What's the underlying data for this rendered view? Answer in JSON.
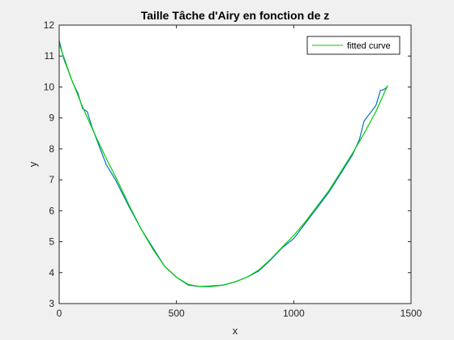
{
  "chart_data": {
    "type": "line",
    "title": "Taille Tâche d'Airy en fonction de z",
    "xlabel": "x",
    "ylabel": "y",
    "xlim": [
      0,
      1500
    ],
    "ylim": [
      3,
      12
    ],
    "xticks": [
      0,
      500,
      1000,
      1500
    ],
    "yticks": [
      3,
      4,
      5,
      6,
      7,
      8,
      9,
      10,
      11,
      12
    ],
    "grid": false,
    "legend_position": "top-right",
    "series": [
      {
        "role": "data",
        "color": "#0072BD",
        "x": [
          0,
          20,
          40,
          60,
          80,
          100,
          120,
          140,
          160,
          200,
          240,
          260,
          300,
          350,
          400,
          450,
          500,
          550,
          600,
          650,
          700,
          750,
          800,
          850,
          900,
          950,
          1000,
          1050,
          1100,
          1150,
          1200,
          1250,
          1280,
          1300,
          1320,
          1350,
          1370,
          1380,
          1400
        ],
        "y": [
          11.5,
          10.9,
          10.5,
          10.1,
          9.8,
          9.3,
          9.2,
          8.7,
          8.3,
          7.5,
          7.0,
          6.7,
          6.1,
          5.4,
          4.8,
          4.2,
          3.85,
          3.6,
          3.55,
          3.57,
          3.6,
          3.7,
          3.85,
          4.05,
          4.4,
          4.8,
          5.1,
          5.6,
          6.1,
          6.6,
          7.2,
          7.8,
          8.3,
          8.9,
          9.1,
          9.4,
          9.9,
          9.9,
          10.0
        ]
      },
      {
        "role": "fit",
        "name": "fitted curve",
        "color": "#00CC00",
        "x": [
          0,
          50,
          100,
          150,
          200,
          250,
          300,
          350,
          400,
          450,
          500,
          550,
          600,
          650,
          700,
          750,
          800,
          850,
          900,
          950,
          1000,
          1050,
          1100,
          1150,
          1200,
          1250,
          1300,
          1350,
          1400
        ],
        "y": [
          11.4,
          10.3,
          9.35,
          8.5,
          7.7,
          6.95,
          6.15,
          5.4,
          4.75,
          4.2,
          3.85,
          3.62,
          3.55,
          3.55,
          3.6,
          3.7,
          3.85,
          4.08,
          4.42,
          4.82,
          5.2,
          5.65,
          6.15,
          6.65,
          7.25,
          7.85,
          8.5,
          9.2,
          10.05
        ]
      }
    ]
  }
}
